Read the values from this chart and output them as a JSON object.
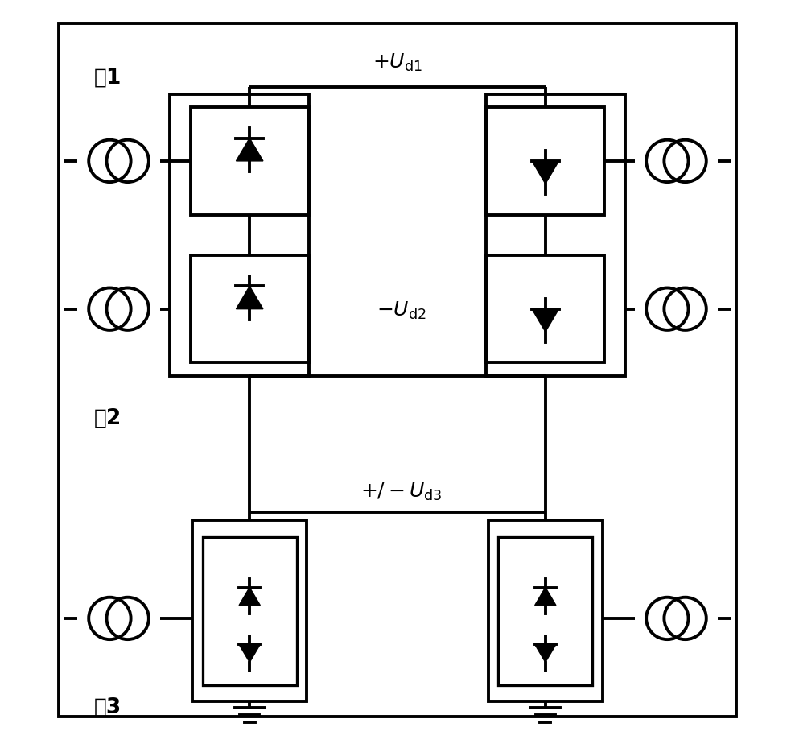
{
  "bg_color": "#ffffff",
  "line_color": "#000000",
  "lw": 2.8,
  "fig_w": 9.88,
  "fig_h": 9.19,
  "label_ji1": "杗1",
  "label_ji2": "杗2",
  "label_ji3": "杗3"
}
